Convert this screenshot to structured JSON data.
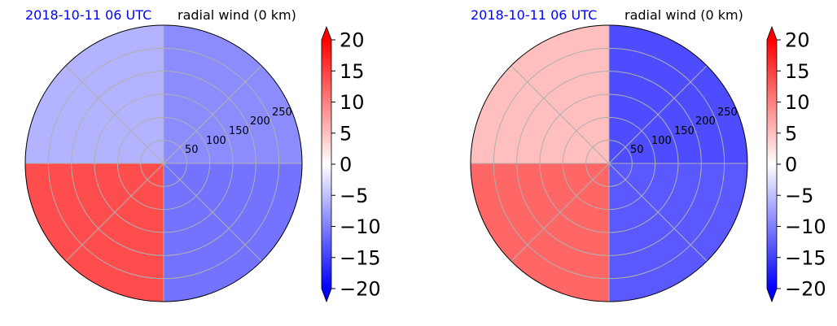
{
  "chart_data": [
    {
      "type": "heatmap",
      "projection": "polar",
      "title_left": "2018-10-11 06 UTC",
      "title_right": "radial wind (0 km)",
      "radial_ticks": [
        "50",
        "100",
        "150",
        "200",
        "250"
      ],
      "colorbar": {
        "ticks": [
          "20",
          "15",
          "10",
          "5",
          "0",
          "−5",
          "−10",
          "−15",
          "−20"
        ],
        "range": [
          -20,
          20
        ],
        "colormap": "bwr",
        "extend": "both"
      },
      "field_sectors": [
        {
          "quadrant": "north-west",
          "mean_value": -6
        },
        {
          "quadrant": "north-east",
          "mean_value": -9
        },
        {
          "quadrant": "south-east",
          "mean_value": -11
        },
        {
          "quadrant": "south-west",
          "mean_value": 14
        }
      ]
    },
    {
      "type": "heatmap",
      "projection": "polar",
      "title_left": "2018-10-11 06 UTC",
      "title_right": "radial wind (0 km)",
      "radial_ticks": [
        "50",
        "100",
        "150",
        "200",
        "250"
      ],
      "colorbar": {
        "ticks": [
          "20",
          "15",
          "10",
          "5",
          "0",
          "−5",
          "−10",
          "−15",
          "−20"
        ],
        "range": [
          -20,
          20
        ],
        "colormap": "bwr",
        "extend": "both"
      },
      "field_sectors": [
        {
          "quadrant": "north-west",
          "mean_value": 5
        },
        {
          "quadrant": "north-east",
          "mean_value": -14
        },
        {
          "quadrant": "south-east",
          "mean_value": -13
        },
        {
          "quadrant": "south-west",
          "mean_value": 12
        }
      ]
    }
  ],
  "colors": {
    "title_date": "#0000ff",
    "title_field": "#000000",
    "grid": "#b0b0b0",
    "max_red": "#ff0000",
    "max_blue": "#0000ff"
  }
}
